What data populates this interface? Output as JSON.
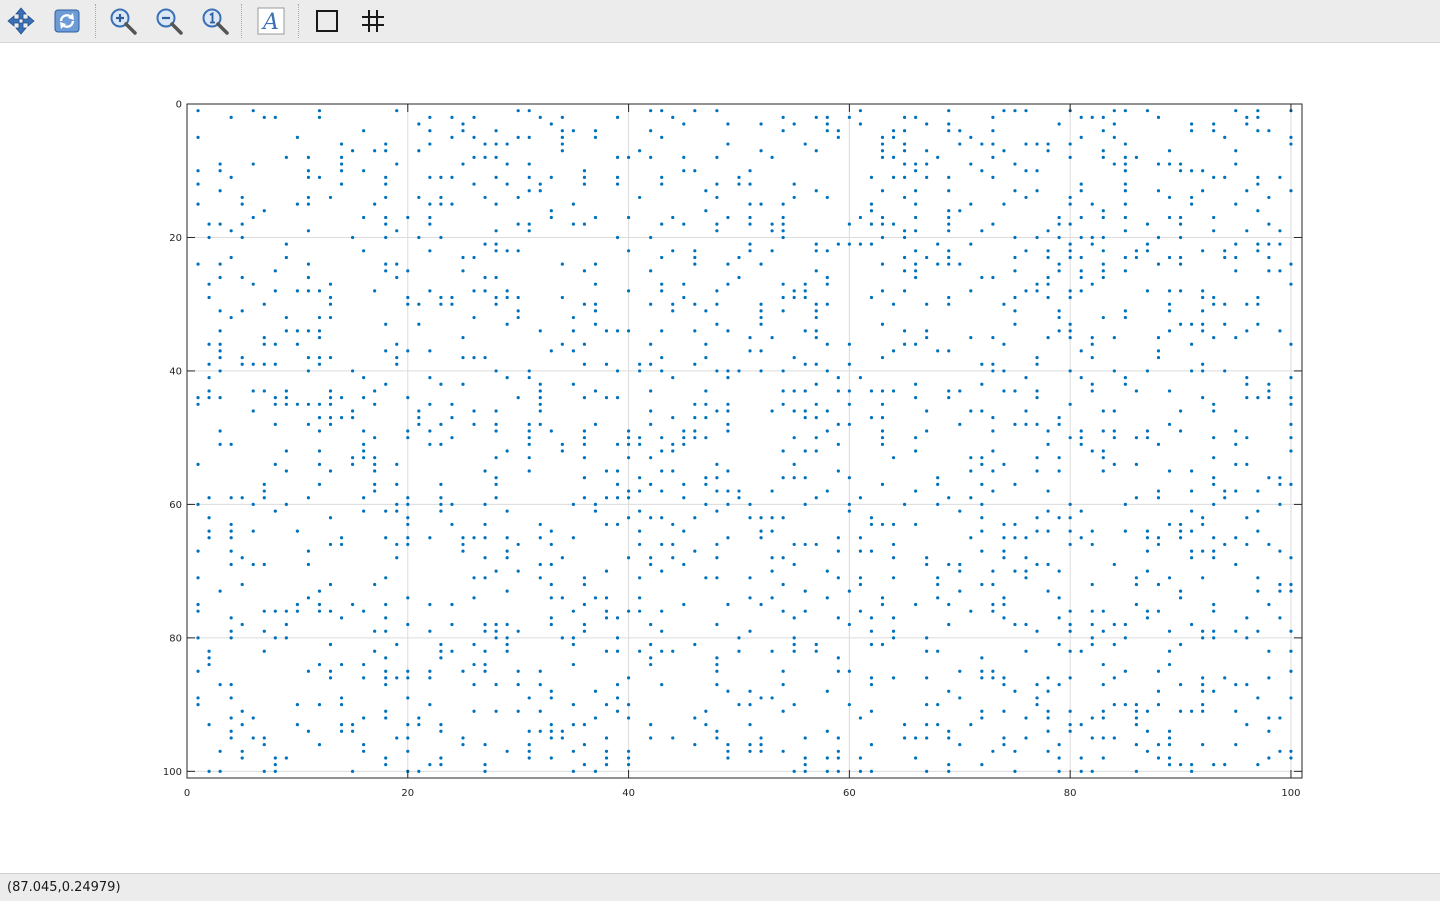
{
  "toolbar": {
    "buttons": [
      {
        "name": "pan-button",
        "icon": "pan-arrows-icon"
      },
      {
        "name": "rotate-button",
        "icon": "rotate-icon"
      },
      {
        "name": "zoom-in-button",
        "icon": "zoom-in-icon"
      },
      {
        "name": "zoom-out-button",
        "icon": "zoom-out-icon"
      },
      {
        "name": "zoom-reset-button",
        "icon": "zoom-reset-icon"
      },
      {
        "name": "text-annotation-button",
        "icon": "text-icon"
      },
      {
        "name": "box-toggle-button",
        "icon": "box-icon"
      },
      {
        "name": "grid-toggle-button",
        "icon": "grid-icon"
      }
    ]
  },
  "status": {
    "coordinates": "(87.045,0.24979)"
  },
  "colors": {
    "marker": "#0072bd",
    "grid": "#dcdcdc",
    "axis": "#262626",
    "icon_blue": "#3b6fb6"
  },
  "chart_data": {
    "type": "scatter",
    "title": "",
    "xlabel": "",
    "ylabel": "",
    "xlim": [
      0,
      101
    ],
    "ylim": [
      0,
      101
    ],
    "y_reversed": true,
    "grid": true,
    "box": true,
    "xticks": [
      0,
      20,
      40,
      60,
      80,
      100
    ],
    "yticks": [
      0,
      20,
      40,
      60,
      80,
      100
    ],
    "xtick_labels": [
      "0",
      "20",
      "40",
      "60",
      "80",
      "100"
    ],
    "ytick_labels": [
      "0",
      "20",
      "40",
      "60",
      "80",
      "100"
    ],
    "marker": "dot",
    "n_points": 1850,
    "density": 0.185,
    "seed": 20241,
    "series": [
      {
        "values": []
      }
    ]
  }
}
